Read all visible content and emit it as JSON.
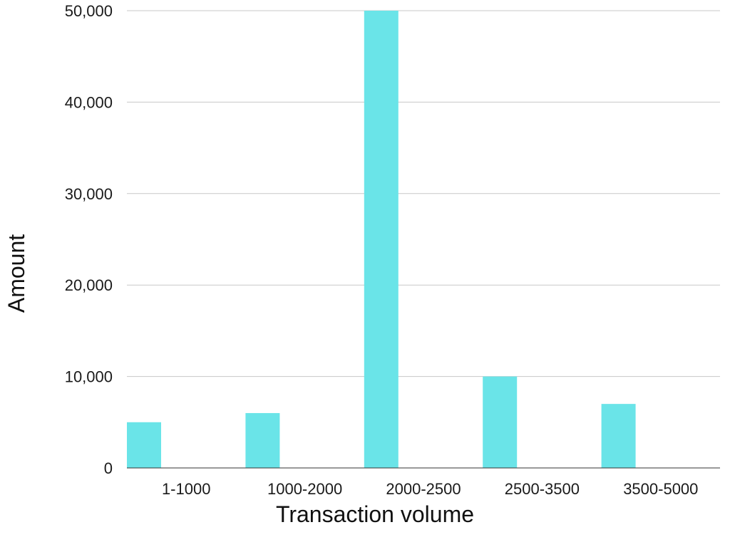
{
  "chart_data": {
    "type": "bar",
    "title": "",
    "xlabel": "Transaction volume",
    "ylabel": "Amount",
    "categories": [
      "1-1000",
      "1000-2000",
      "2000-2500",
      "2500-3500",
      "3500-5000"
    ],
    "values": [
      5000,
      6000,
      50000,
      10000,
      7000
    ],
    "ylim": [
      0,
      50000
    ],
    "y_ticks": [
      "0",
      "10,000",
      "20,000",
      "30,000",
      "40,000",
      "50,000"
    ],
    "grid": true,
    "legend": "none"
  },
  "colors": {
    "bar": "#6ae4e8",
    "grid": "#c8c8c8",
    "axis": "#333333"
  }
}
